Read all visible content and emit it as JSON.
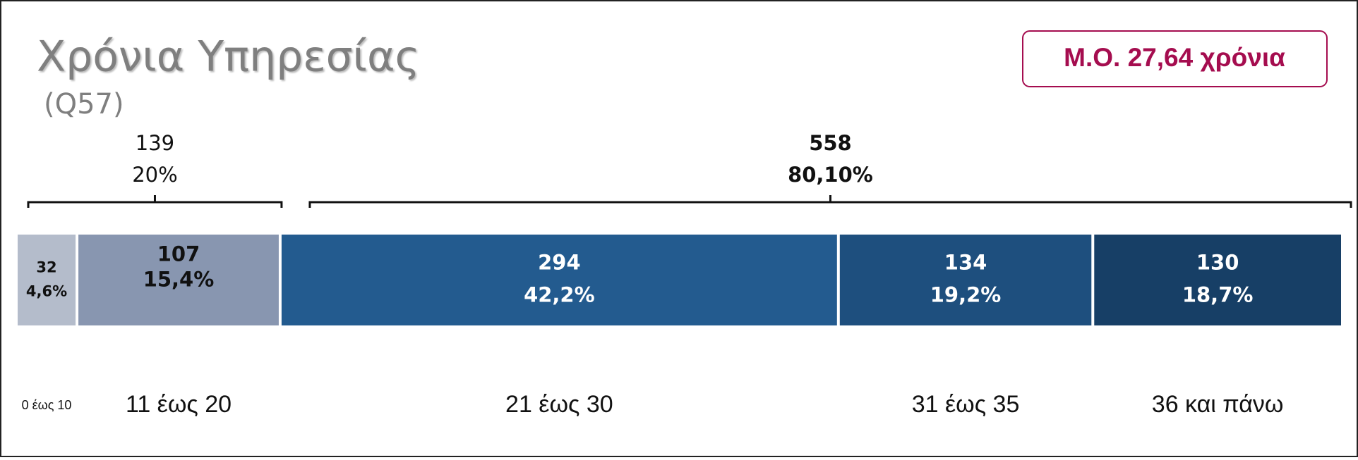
{
  "chart_data": {
    "type": "stacked-bar",
    "title": "Χρόνια Υπηρεσίας",
    "subtitle": "(Q57)",
    "annotation": "Μ.Ο. 27,64 χρόνια",
    "categories": [
      "0 έως 10",
      "11 έως 20",
      "21 έως 30",
      "31 έως 35",
      "36 και πάνω"
    ],
    "values": [
      32,
      107,
      294,
      134,
      130
    ],
    "percents": [
      4.6,
      15.4,
      42.2,
      19.2,
      18.7
    ],
    "percent_labels": [
      "4,6%",
      "15,4%",
      "42,2%",
      "19,2%",
      "18,7%"
    ],
    "colors": [
      "#b4bccb",
      "#8896b0",
      "#235b8f",
      "#1e4f7e",
      "#173f66"
    ],
    "groups": [
      {
        "value": 139,
        "percent": 20,
        "percent_label": "20%"
      },
      {
        "value": 558,
        "percent": 80.1,
        "percent_label": "80,10%"
      }
    ]
  }
}
